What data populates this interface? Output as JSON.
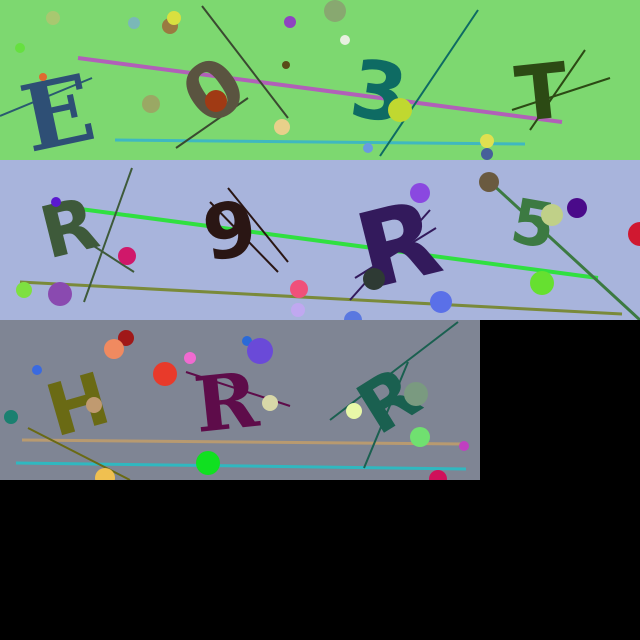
{
  "captchas": [
    {
      "background": "#7dd870",
      "characters": [
        {
          "char": "E",
          "color": "#2e4f75"
        },
        {
          "char": "0",
          "color": "#5a5440"
        },
        {
          "char": "3",
          "color": "#0e6b63"
        },
        {
          "char": "T",
          "color": "#2c4a14"
        }
      ]
    },
    {
      "background": "#a8b4dc",
      "characters": [
        {
          "char": "R",
          "color": "#3e5a3a"
        },
        {
          "char": "9",
          "color": "#2a1614"
        },
        {
          "char": "R",
          "color": "#331a5c"
        },
        {
          "char": "5",
          "color": "#3c7a42"
        }
      ]
    },
    {
      "background": "#7f8594",
      "characters": [
        {
          "char": "H",
          "color": "#6a6a14"
        },
        {
          "char": "R",
          "color": "#5e0c4a"
        },
        {
          "char": "R",
          "color": "#1a6050"
        }
      ]
    }
  ]
}
